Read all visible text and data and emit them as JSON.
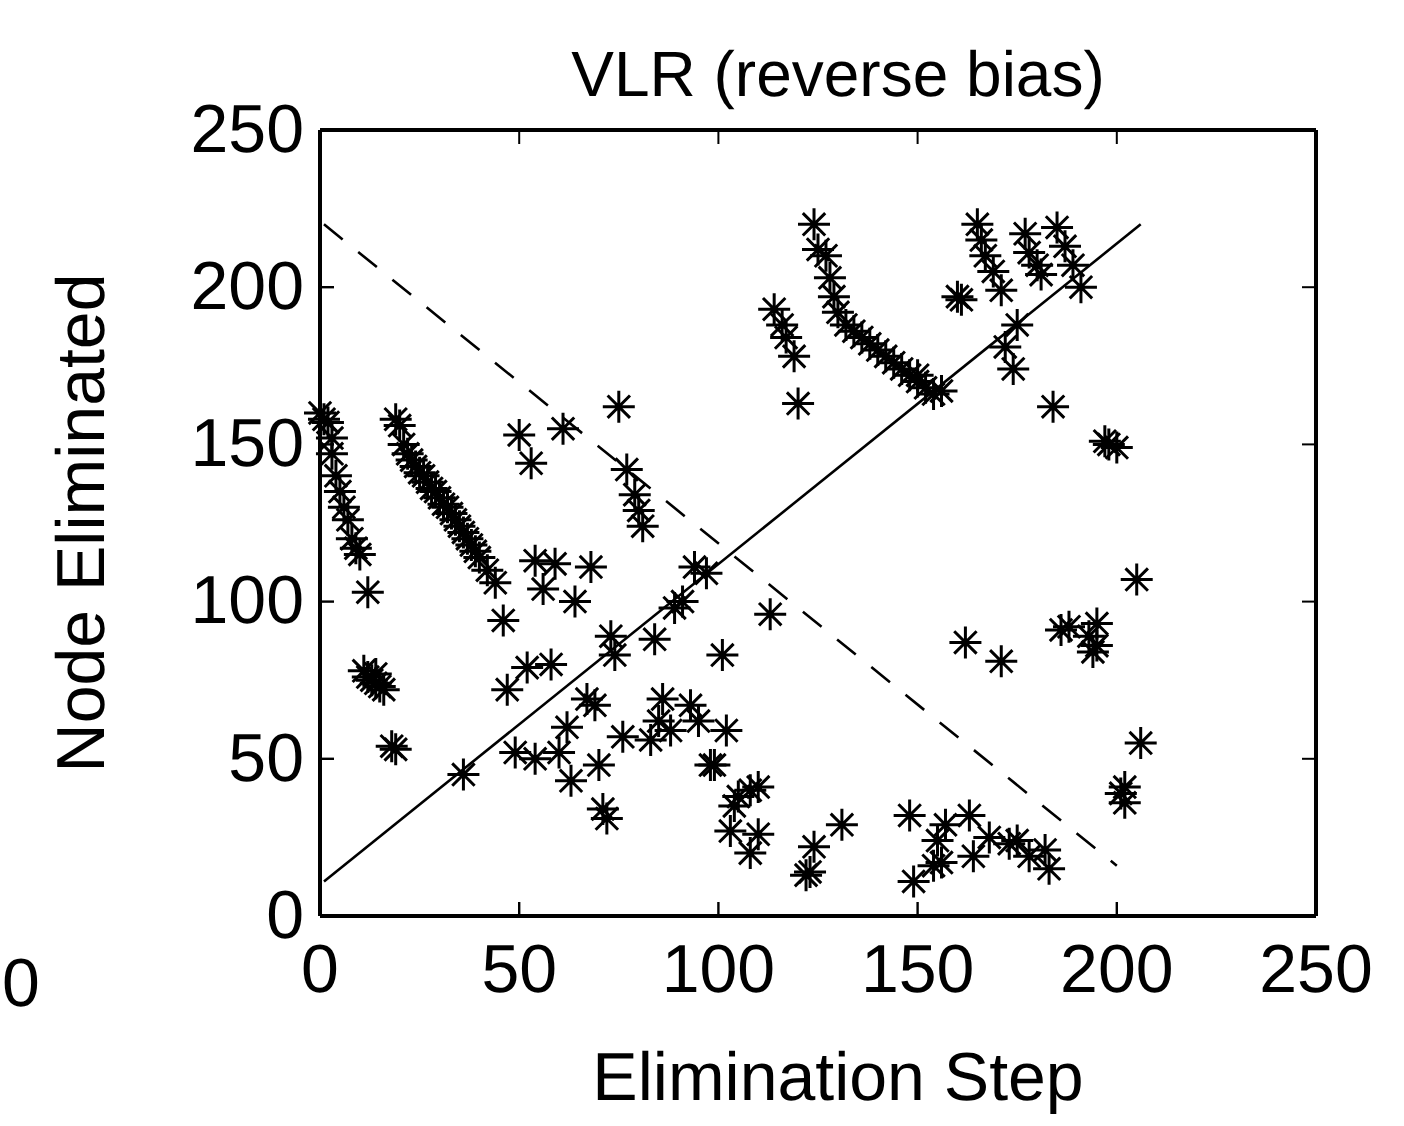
{
  "chart_data": {
    "type": "scatter",
    "title": "VLR (reverse bias)",
    "xlabel": "Elimination Step",
    "ylabel": "Node Eliminated",
    "xlim": [
      0,
      250
    ],
    "ylim": [
      0,
      250
    ],
    "xticks": [
      0,
      50,
      100,
      150,
      200,
      250
    ],
    "yticks": [
      0,
      50,
      100,
      150,
      200,
      250
    ],
    "grid": false,
    "marker": "cross",
    "annotations": [
      "0"
    ],
    "series": [
      {
        "color": "#000000",
        "x": [
          0,
          1,
          2,
          3,
          3,
          4,
          5,
          6,
          7,
          8,
          9,
          10,
          12,
          11,
          12,
          13,
          14,
          15,
          16,
          14,
          18,
          19,
          19,
          20,
          21,
          22,
          23,
          24,
          25,
          26,
          27,
          28,
          29,
          30,
          31,
          32,
          33,
          34,
          35,
          36,
          37,
          38,
          39,
          40,
          42,
          44,
          46,
          36,
          47,
          52,
          58,
          54,
          59,
          56,
          64,
          68,
          49,
          54,
          60,
          63,
          70,
          62,
          67,
          69,
          71,
          72,
          73,
          74,
          76,
          84,
          83,
          86,
          85,
          88,
          93,
          95,
          89,
          91,
          94,
          97,
          102,
          98,
          99,
          101,
          103,
          104,
          105,
          108,
          110,
          108,
          110,
          113,
          124,
          122,
          123,
          131,
          124,
          125,
          127,
          128,
          129,
          114,
          116,
          117,
          119,
          120,
          75,
          77,
          79,
          80,
          81,
          50,
          53,
          61,
          130,
          132,
          134,
          136,
          138,
          140,
          142,
          144,
          146,
          148,
          150,
          152,
          154,
          156,
          150,
          160,
          161,
          165,
          166,
          167,
          169,
          171,
          177,
          178,
          180,
          181,
          185,
          187,
          189,
          191,
          175,
          172,
          174,
          184,
          198,
          200,
          197,
          205,
          206,
          201,
          202,
          202,
          186,
          188,
          193,
          195,
          194,
          195,
          162,
          171,
          148,
          149,
          154,
          156,
          155,
          157,
          163,
          164,
          168,
          173,
          175,
          178,
          182,
          183
        ],
        "values": [
          160,
          158,
          157,
          152,
          147,
          140,
          135,
          130,
          126,
          120,
          117,
          115,
          103,
          78,
          76,
          75,
          74,
          73,
          72,
          77,
          54,
          53,
          158,
          156,
          150,
          147,
          145,
          143,
          141,
          140,
          138,
          136,
          135,
          133,
          131,
          130,
          128,
          126,
          124,
          122,
          120,
          118,
          116,
          114,
          110,
          106,
          94,
          45,
          72,
          79,
          80,
          113,
          112,
          104,
          100,
          111,
          52,
          50,
          52,
          43,
          48,
          60,
          69,
          67,
          34,
          31,
          89,
          83,
          57,
          88,
          56,
          69,
          62,
          59,
          67,
          62,
          98,
          100,
          111,
          109,
          59,
          48,
          48,
          83,
          27,
          35,
          38,
          40,
          41,
          20,
          26,
          96,
          22,
          13,
          14,
          29,
          220,
          212,
          210,
          203,
          197,
          193,
          188,
          184,
          178,
          163,
          162,
          142,
          134,
          129,
          124,
          153,
          144,
          155,
          192,
          188,
          186,
          184,
          182,
          180,
          178,
          176,
          174,
          172,
          170,
          168,
          166,
          167,
          172,
          197,
          196,
          220,
          215,
          210,
          205,
          199,
          217,
          211,
          207,
          204,
          219,
          213,
          207,
          200,
          188,
          181,
          174,
          162,
          150,
          149,
          151,
          107,
          55,
          39,
          41,
          36,
          91,
          92,
          89,
          93,
          84,
          86,
          87,
          81,
          32,
          11,
          16,
          17,
          24,
          29,
          32,
          19,
          25,
          23,
          24,
          19,
          21,
          15
        ]
      },
      {
        "type": "line",
        "color": "#000000",
        "line_style": "solid",
        "marker": "none",
        "x": [
          1,
          206
        ],
        "values": [
          11,
          220
        ]
      },
      {
        "type": "line",
        "color": "#000000",
        "line_style": "dashed",
        "marker": "none",
        "x": [
          1,
          200
        ],
        "values": [
          220,
          16
        ]
      }
    ]
  }
}
